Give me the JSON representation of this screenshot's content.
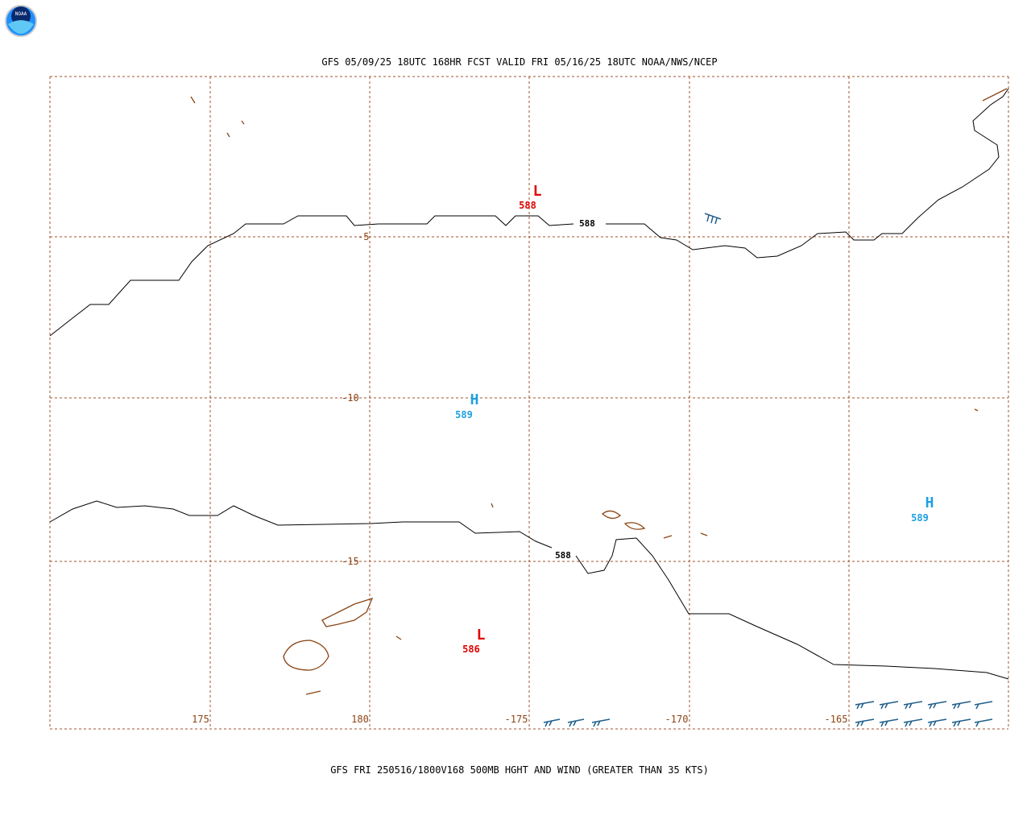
{
  "logo": "NOAA",
  "header": {
    "title": "GFS 05/09/25 18UTC 168HR FCST VALID FRI 05/16/25 18UTC NOAA/NWS/NCEP"
  },
  "map": {
    "lat_labels": [
      "-5",
      "-10",
      "-15"
    ],
    "lon_labels": [
      "175",
      "180",
      "-175",
      "-170",
      "-165"
    ],
    "centers": [
      {
        "symbol": "L",
        "value": "588"
      },
      {
        "symbol": "H",
        "value": "589"
      },
      {
        "symbol": "H",
        "value": "589"
      },
      {
        "symbol": "L",
        "value": "586"
      }
    ],
    "contour_labels": [
      "588",
      "588"
    ]
  },
  "footer": {
    "caption": "GFS FRI 250516/1800V168 500MB HGHT AND WIND (GREATER THAN 35 KTS)"
  }
}
